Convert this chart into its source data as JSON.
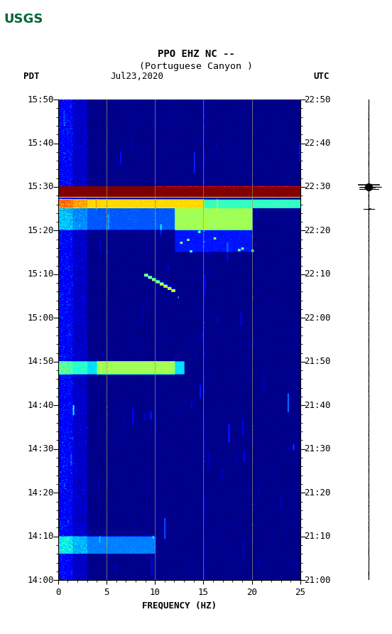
{
  "title_line1": "PPO EHZ NC --",
  "title_line2": "(Portuguese Canyon )",
  "label_left": "PDT",
  "label_date": "Jul23,2020",
  "label_right": "UTC",
  "xlabel": "FREQUENCY (HZ)",
  "freq_min": 0,
  "freq_max": 25,
  "pdt_ticks": [
    "14:00",
    "14:10",
    "14:20",
    "14:30",
    "14:40",
    "14:50",
    "15:00",
    "15:10",
    "15:20",
    "15:30",
    "15:40",
    "15:50"
  ],
  "utc_ticks": [
    "21:00",
    "21:10",
    "21:20",
    "21:30",
    "21:40",
    "21:50",
    "22:00",
    "22:10",
    "22:20",
    "22:30",
    "22:40",
    "22:50"
  ],
  "freq_ticks": [
    0,
    5,
    10,
    15,
    20,
    25
  ],
  "vlines_freq": [
    5,
    10,
    15,
    20
  ],
  "fig_bg": "#ffffff",
  "usgs_green": "#006633",
  "colormap": "jet",
  "n_time": 660,
  "n_freq": 500,
  "total_minutes": 110,
  "event1_minute": 20,
  "event1_duration": 2,
  "event2_minute": 25,
  "event2_duration": 3,
  "event3_minute": 40,
  "event4_minute": 60,
  "event5_minute": 100
}
